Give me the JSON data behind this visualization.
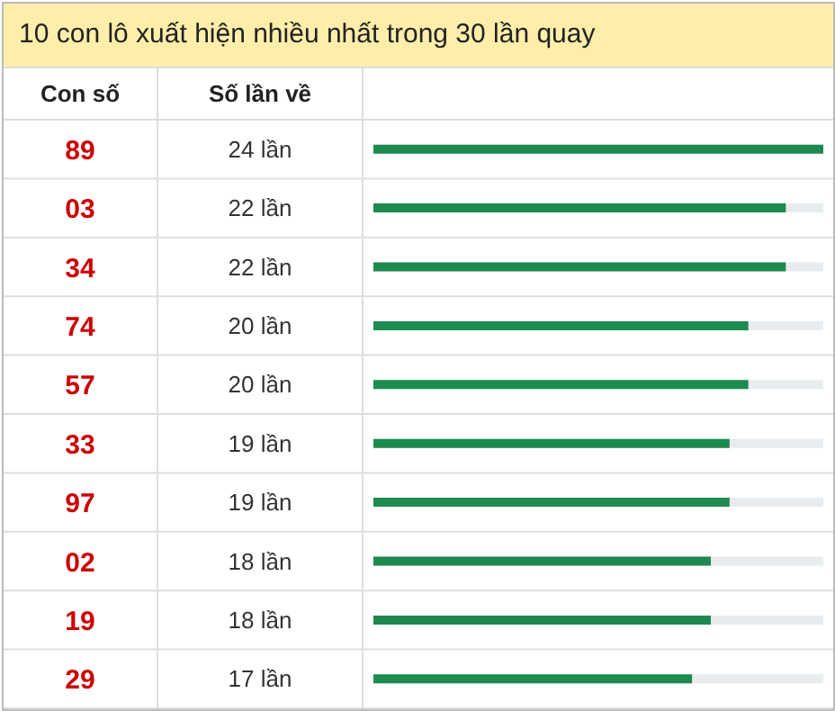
{
  "chart_data": {
    "type": "bar",
    "orientation": "horizontal",
    "title": "10 con lô xuất hiện nhiều nhất trong 30 lần quay",
    "ylabel": "Con số",
    "xlabel": "Số lần về",
    "categories": [
      "89",
      "03",
      "34",
      "74",
      "57",
      "33",
      "97",
      "02",
      "19",
      "29"
    ],
    "values": [
      24,
      22,
      22,
      20,
      20,
      19,
      19,
      18,
      18,
      17
    ],
    "value_labels": [
      "24 lần",
      "22 lần",
      "22 lần",
      "20 lần",
      "20 lần",
      "19 lần",
      "19 lần",
      "18 lần",
      "18 lần",
      "17 lần"
    ],
    "color": "#1e8a50"
  }
}
